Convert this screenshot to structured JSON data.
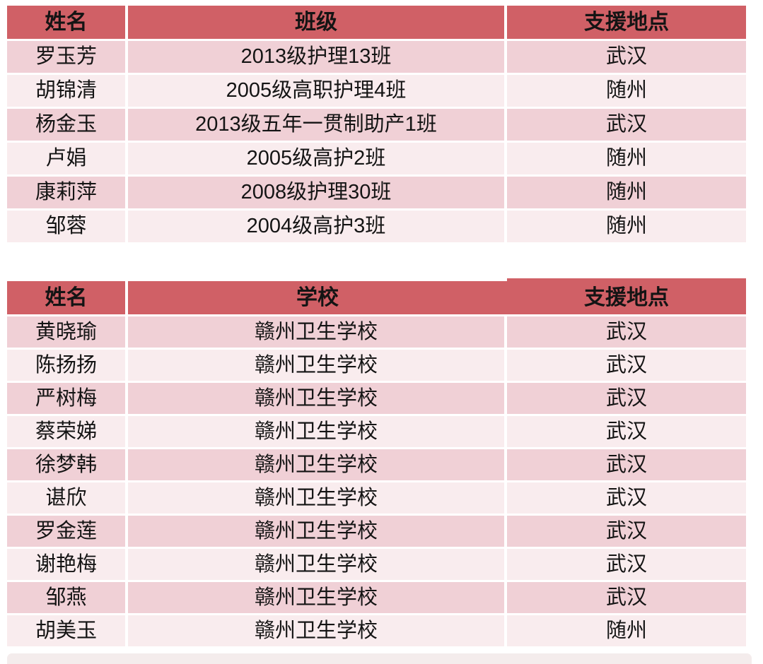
{
  "page": {
    "background": "#ffffff",
    "header_color": "#d06066",
    "row_color_dark": "#f0d0d6",
    "row_color_light": "#f9ecee",
    "footer_strip_color": "#f4ecec",
    "text_color": "#141414"
  },
  "tables": [
    {
      "columns": [
        "姓名",
        "班级",
        "支援地点"
      ],
      "rows": [
        [
          "罗玉芳",
          "2013级护理13班",
          "武汉"
        ],
        [
          "胡锦清",
          "2005级高职护理4班",
          "随州"
        ],
        [
          "杨金玉",
          "2013级五年一贯制助产1班",
          "武汉"
        ],
        [
          "卢娟",
          "2005级高护2班",
          "随州"
        ],
        [
          "康莉萍",
          "2008级护理30班",
          "随州"
        ],
        [
          "邹蓉",
          "2004级高护3班",
          "随州"
        ]
      ]
    },
    {
      "columns": [
        "姓名",
        "学校",
        "支援地点"
      ],
      "rows": [
        [
          "黄晓瑜",
          "赣州卫生学校",
          "武汉"
        ],
        [
          "陈扬扬",
          "赣州卫生学校",
          "武汉"
        ],
        [
          "严树梅",
          "赣州卫生学校",
          "武汉"
        ],
        [
          "蔡荣娣",
          "赣州卫生学校",
          "武汉"
        ],
        [
          "徐梦韩",
          "赣州卫生学校",
          "武汉"
        ],
        [
          "谌欣",
          "赣州卫生学校",
          "武汉"
        ],
        [
          "罗金莲",
          "赣州卫生学校",
          "武汉"
        ],
        [
          "谢艳梅",
          "赣州卫生学校",
          "武汉"
        ],
        [
          "邹燕",
          "赣州卫生学校",
          "武汉"
        ],
        [
          "胡美玉",
          "赣州卫生学校",
          "随州"
        ]
      ]
    }
  ]
}
